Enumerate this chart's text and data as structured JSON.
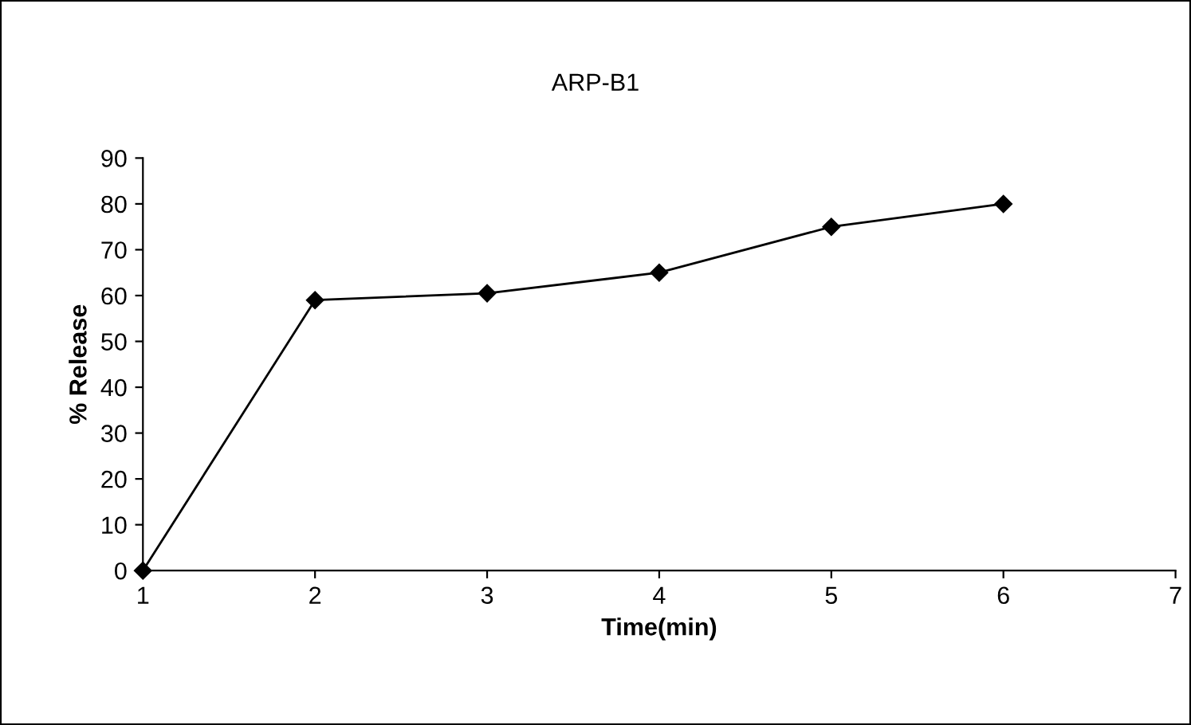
{
  "chart_data": {
    "type": "line",
    "title": "ARP-B1",
    "xlabel": "Time(min)",
    "ylabel": "% Release",
    "x": [
      1,
      2,
      3,
      4,
      5,
      6
    ],
    "series": [
      {
        "color": "#000000",
        "values": [
          0,
          59,
          60.5,
          65,
          75,
          80
        ]
      }
    ],
    "marker": "diamond",
    "line_style": "solid",
    "grid": false,
    "legend": false,
    "xlim": [
      1,
      7
    ],
    "xticks": [
      1,
      2,
      3,
      4,
      5,
      6,
      7
    ],
    "ylim": [
      0,
      90
    ],
    "yticks": [
      0,
      10,
      20,
      30,
      40,
      50,
      60,
      70,
      80,
      90
    ]
  }
}
